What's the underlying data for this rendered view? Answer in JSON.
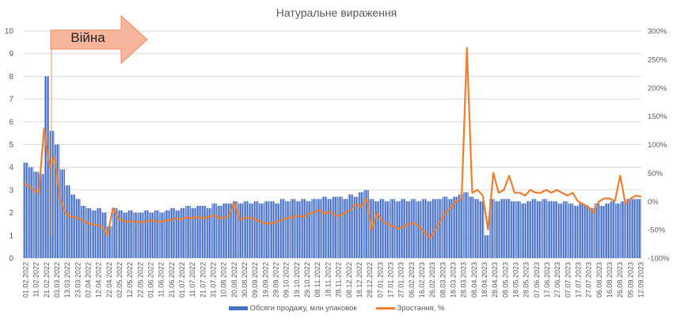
{
  "chart_data": {
    "type": "bar+line",
    "title": "Натуральне вираження",
    "annotation": {
      "label": "Війна",
      "date": "24.02.2022"
    },
    "y_left": {
      "min": 0,
      "max": 10,
      "ticks": [
        "0",
        "1",
        "2",
        "3",
        "4",
        "5",
        "6",
        "7",
        "8",
        "9",
        "10"
      ]
    },
    "y_right": {
      "min": -100,
      "max": 300,
      "ticks": [
        "-100%",
        "-50%",
        "0%",
        "50%",
        "100%",
        "150%",
        "200%",
        "250%",
        "300%"
      ]
    },
    "x_tick_labels": [
      "01.02.2022",
      "11.02.2022",
      "21.02.2022",
      "03.03.2022",
      "13.03.2022",
      "23.03.2022",
      "02.04.2022",
      "12.04.2022",
      "22.04.2022",
      "02.05.2022",
      "12.05.2022",
      "22.05.2022",
      "01.06.2022",
      "11.06.2022",
      "21.06.2022",
      "01.07.2022",
      "11.07.2022",
      "21.07.2022",
      "31.07.2022",
      "10.08.2022",
      "20.08.2022",
      "30.08.2022",
      "09.09.2022",
      "19.09.2022",
      "29.09.2022",
      "09.10.2022",
      "19.10.2022",
      "29.10.2022",
      "08.11.2022",
      "18.11.2022",
      "28.11.2022",
      "08.12.2022",
      "18.12.2022",
      "28.12.2022",
      "07.01.2023",
      "17.01.2023",
      "27.01.2023",
      "06.02.2023",
      "16.02.2023",
      "26.02.2023",
      "08.03.2023",
      "18.03.2023",
      "28.03.2023",
      "08.04.2023",
      "18.04.2023",
      "28.04.2023",
      "08.05.2023",
      "18.05.2023",
      "28.05.2023",
      "07.06.2023",
      "17.06.2023",
      "27.06.2023",
      "07.07.2023",
      "17.07.2023",
      "27.07.2023",
      "06.08.2023",
      "16.08.2023",
      "26.08.2023",
      "05.09.2023",
      "12.09.2023"
    ],
    "series": [
      {
        "name": "Обсяги продажу, млн упаковок",
        "type": "bar",
        "color": "#4472c4",
        "axis": "left",
        "values": [
          4.2,
          4.0,
          3.8,
          3.7,
          8.0,
          5.6,
          5.0,
          3.9,
          3.2,
          2.8,
          2.6,
          2.3,
          2.2,
          2.1,
          2.2,
          2.0,
          1.4,
          2.2,
          2.1,
          2.0,
          2.1,
          2.0,
          2.0,
          2.1,
          2.0,
          2.1,
          2.0,
          2.1,
          2.2,
          2.1,
          2.2,
          2.3,
          2.2,
          2.3,
          2.3,
          2.2,
          2.4,
          2.3,
          2.4,
          2.4,
          2.5,
          2.4,
          2.5,
          2.4,
          2.5,
          2.4,
          2.5,
          2.5,
          2.4,
          2.6,
          2.5,
          2.6,
          2.5,
          2.6,
          2.5,
          2.6,
          2.6,
          2.7,
          2.6,
          2.7,
          2.7,
          2.6,
          2.8,
          2.7,
          2.9,
          3.0,
          2.6,
          2.5,
          2.6,
          2.5,
          2.6,
          2.5,
          2.6,
          2.5,
          2.6,
          2.5,
          2.6,
          2.5,
          2.6,
          2.6,
          2.7,
          2.6,
          2.7,
          2.8,
          2.9,
          2.7,
          2.6,
          2.5,
          1.0,
          2.6,
          2.5,
          2.6,
          2.6,
          2.5,
          2.5,
          2.4,
          2.5,
          2.6,
          2.5,
          2.6,
          2.5,
          2.5,
          2.4,
          2.5,
          2.4,
          2.3,
          2.4,
          2.3,
          2.2,
          2.4,
          2.3,
          2.4,
          2.5,
          2.4,
          2.5,
          2.6,
          2.6,
          2.6
        ]
      },
      {
        "name": "Зростання, %",
        "type": "line",
        "color": "#ed7d31",
        "axis": "right",
        "values": [
          32,
          28,
          20,
          15,
          128,
          60,
          78,
          5,
          -20,
          -28,
          -28,
          -32,
          -38,
          -40,
          -42,
          -45,
          -60,
          -12,
          -30,
          -35,
          -36,
          -35,
          -37,
          -36,
          -34,
          -35,
          -36,
          -34,
          -33,
          -30,
          -32,
          -28,
          -30,
          -27,
          -30,
          -28,
          -25,
          -28,
          -30,
          -25,
          -2,
          -32,
          -30,
          -28,
          -33,
          -35,
          -40,
          -38,
          -37,
          -32,
          -30,
          -28,
          -25,
          -28,
          -22,
          -20,
          -15,
          -22,
          -18,
          -25,
          -25,
          -20,
          -15,
          -5,
          -10,
          5,
          -50,
          -20,
          -35,
          -40,
          -45,
          -48,
          -45,
          -40,
          -38,
          -45,
          -55,
          -65,
          -50,
          -35,
          -20,
          -10,
          0,
          5,
          270,
          15,
          20,
          10,
          -50,
          50,
          15,
          20,
          45,
          15,
          15,
          10,
          20,
          15,
          15,
          20,
          15,
          20,
          15,
          10,
          15,
          0,
          -5,
          -10,
          -20,
          0,
          5,
          5,
          0,
          45,
          -5,
          5,
          10,
          8
        ]
      }
    ],
    "legend_position": "bottom",
    "grid": true
  }
}
